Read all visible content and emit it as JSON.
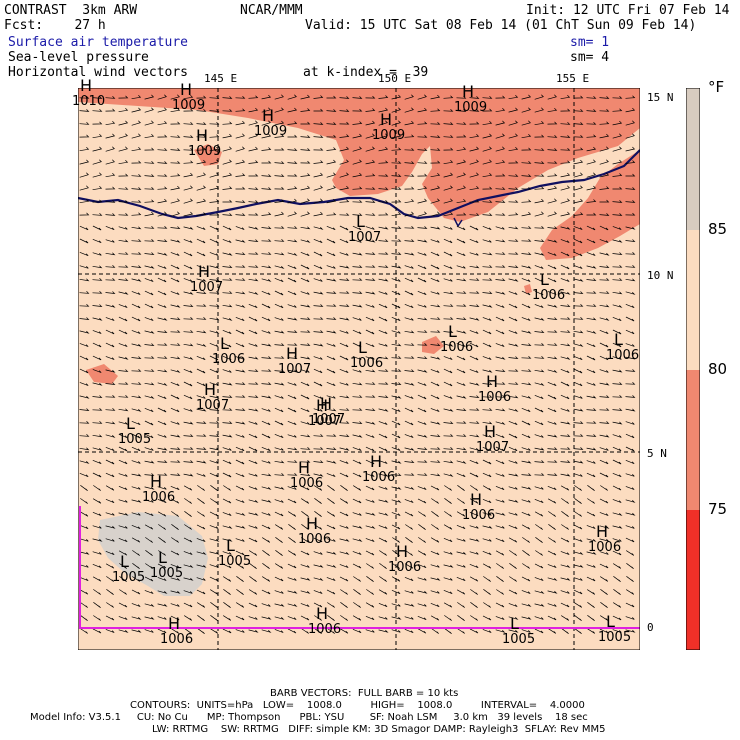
{
  "header": {
    "title_left": "CONTRAST  3km ARW",
    "forecast": "Fcst:    27 h",
    "center": "NCAR/MMM",
    "init": "Init: 12 UTC Fri 07 Feb 14",
    "valid": "Valid: 15 UTC Sat 08 Feb 14 (01 ChT Sun 09 Feb 14)",
    "field1": "Surface air temperature",
    "field1_sm": "sm= 1",
    "field2": "Sea-level pressure",
    "field2_sm": "sm= 4",
    "field3": "Horizontal wind vectors",
    "kindex": "at k-index =  39"
  },
  "axes": {
    "lon_labels": [
      "145 E",
      "150 E",
      "155 E"
    ],
    "lat_labels": [
      "15 N",
      "10 N",
      "5 N",
      "0"
    ]
  },
  "colorbar": {
    "unit": "°F",
    "ticks": [
      "85",
      "80",
      "75"
    ],
    "colors": {
      "above_85": "#d8ccc0",
      "80_85": "#fcdcc0",
      "75_80": "#f08870",
      "below_75": "#f03028"
    }
  },
  "pressure_marks": [
    {
      "type": "H",
      "value": "1010"
    },
    {
      "type": "H",
      "value": "1009"
    },
    {
      "type": "H",
      "value": "1009"
    },
    {
      "type": "H",
      "value": "1009"
    },
    {
      "type": "H",
      "value": "1009"
    },
    {
      "type": "H",
      "value": "1009"
    },
    {
      "type": "L",
      "value": "1007"
    },
    {
      "type": "H",
      "value": "1007"
    },
    {
      "type": "L",
      "value": "1006"
    },
    {
      "type": "L",
      "value": "1006"
    },
    {
      "type": "L",
      "value": "1006"
    },
    {
      "type": "H",
      "value": "1007"
    },
    {
      "type": "L",
      "value": "1006"
    },
    {
      "type": "L",
      "value": "1006"
    },
    {
      "type": "H",
      "value": "1007"
    },
    {
      "type": "H",
      "value": "1007"
    },
    {
      "type": "H",
      "value": "1006"
    },
    {
      "type": "L",
      "value": "1005"
    },
    {
      "type": "H",
      "value": "1007"
    },
    {
      "type": "H",
      "value": "1007"
    },
    {
      "type": "H",
      "value": "1006"
    },
    {
      "type": "H",
      "value": "1006"
    },
    {
      "type": "L",
      "value": "1005"
    },
    {
      "type": "H",
      "value": "1006"
    },
    {
      "type": "H",
      "value": "1006"
    },
    {
      "type": "L",
      "value": "1005"
    },
    {
      "type": "H",
      "value": "1006"
    },
    {
      "type": "H",
      "value": "1006"
    },
    {
      "type": "H",
      "value": "1006"
    },
    {
      "type": "L",
      "value": "1005"
    },
    {
      "type": "H",
      "value": "1006"
    },
    {
      "type": "H",
      "value": "1006"
    },
    {
      "type": "L",
      "value": "1005"
    },
    {
      "type": "L",
      "value": "1005"
    }
  ],
  "footer": {
    "barb": "BARB VECTORS:  FULL BARB = 10 kts",
    "contours": "CONTOURS:  UNITS=hPa   LOW=    1008.0         HIGH=    1008.0         INTERVAL=    4.0000",
    "model1": "Model Info: V3.5.1     CU: No Cu      MP: Thompson      PBL: YSU        SF: Noah LSM     3.0 km   39 levels    18 sec",
    "model2": "LW: RRTMG    SW: RRTMG   DIFF: simple KM: 3D Smagor DAMP: Rayleigh3  SFLAY: Rev MM5"
  }
}
